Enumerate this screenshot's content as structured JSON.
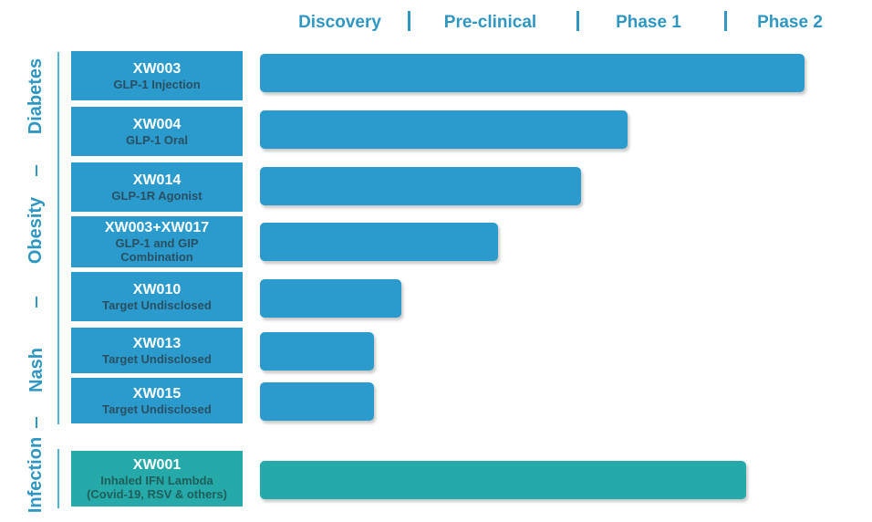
{
  "colors": {
    "blue": "#2a9bcc",
    "teal": "#26a9a9",
    "header": "#2f97c2"
  },
  "phases": [
    "Discovery",
    "Pre-clinical",
    "Phase 1",
    "Phase 2"
  ],
  "indications": [
    "Diabetes",
    "Obesity",
    "Nash",
    "Infection"
  ],
  "programs": [
    {
      "code": "XW003",
      "desc": [
        "GLP-1 Injection"
      ],
      "progress": 1.0
    },
    {
      "code": "XW004",
      "desc": [
        "GLP-1 Oral"
      ],
      "progress": 0.675
    },
    {
      "code": "XW014",
      "desc": [
        "GLP-1R Agonist"
      ],
      "progress": 0.589
    },
    {
      "code": "XW003+XW017",
      "desc": [
        "GLP-1 and GIP",
        "Combination"
      ],
      "progress": 0.438
    },
    {
      "code": "XW010",
      "desc": [
        "Target Undisclosed"
      ],
      "progress": 0.26
    },
    {
      "code": "XW013",
      "desc": [
        "Target Undisclosed"
      ],
      "progress": 0.21
    },
    {
      "code": "XW015",
      "desc": [
        "Target Undisclosed"
      ],
      "progress": 0.21
    },
    {
      "code": "XW001",
      "desc": [
        "Inhaled IFN Lambda",
        "(Covid-19, RSV & others)"
      ],
      "progress": 0.893
    }
  ]
}
